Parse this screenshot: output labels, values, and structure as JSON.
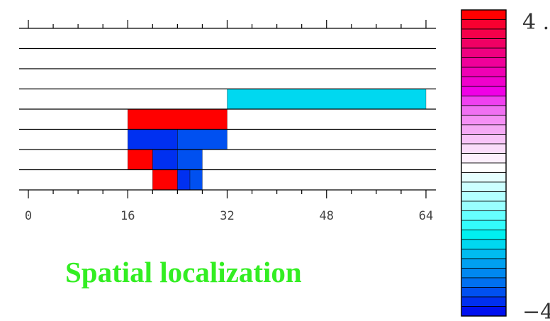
{
  "chart_data": {
    "type": "heatmap",
    "x_range": [
      0,
      64
    ],
    "x_ticks": [
      "0",
      "16",
      "32",
      "48",
      "64"
    ],
    "y_bands": 8,
    "cells": [
      {
        "x0": 32,
        "x1": 64,
        "band": 3,
        "value": -2.0
      },
      {
        "x0": 16,
        "x1": 32,
        "band": 4,
        "value": 4.0
      },
      {
        "x0": 16,
        "x1": 24,
        "band": 5,
        "value": -3.6
      },
      {
        "x0": 24,
        "x1": 32,
        "band": 5,
        "value": -3.3
      },
      {
        "x0": 16,
        "x1": 20,
        "band": 6,
        "value": 4.0
      },
      {
        "x0": 20,
        "x1": 24,
        "band": 6,
        "value": -3.6
      },
      {
        "x0": 24,
        "x1": 28,
        "band": 6,
        "value": -3.3
      },
      {
        "x0": 20,
        "x1": 24,
        "band": 7,
        "value": 4.0
      },
      {
        "x0": 24,
        "x1": 26,
        "band": 7,
        "value": -3.6
      },
      {
        "x0": 26,
        "x1": 28,
        "band": 7,
        "value": -3.3
      }
    ],
    "colorbar": {
      "max_label": "4 .",
      "min_label": "−4",
      "range": [
        -4,
        4
      ],
      "levels": 32,
      "colors": [
        "#ff0000",
        "#f80030",
        "#f5004a",
        "#f00064",
        "#f00080",
        "#f0009a",
        "#f000b4",
        "#f000cc",
        "#f000e6",
        "#f040f0",
        "#f070f2",
        "#f590f5",
        "#f5aaf5",
        "#f8c4f8",
        "#fadcfa",
        "#fdf0fd",
        "#ffffff",
        "#e6ffff",
        "#ccffff",
        "#b3ffff",
        "#99ffff",
        "#66ffff",
        "#33fcfc",
        "#00f0f0",
        "#00d8f0",
        "#00bcf0",
        "#00a0f0",
        "#0088f0",
        "#0070f0",
        "#0050f0",
        "#0030f0",
        "#0010f0"
      ]
    }
  },
  "caption": "Spatial localization"
}
